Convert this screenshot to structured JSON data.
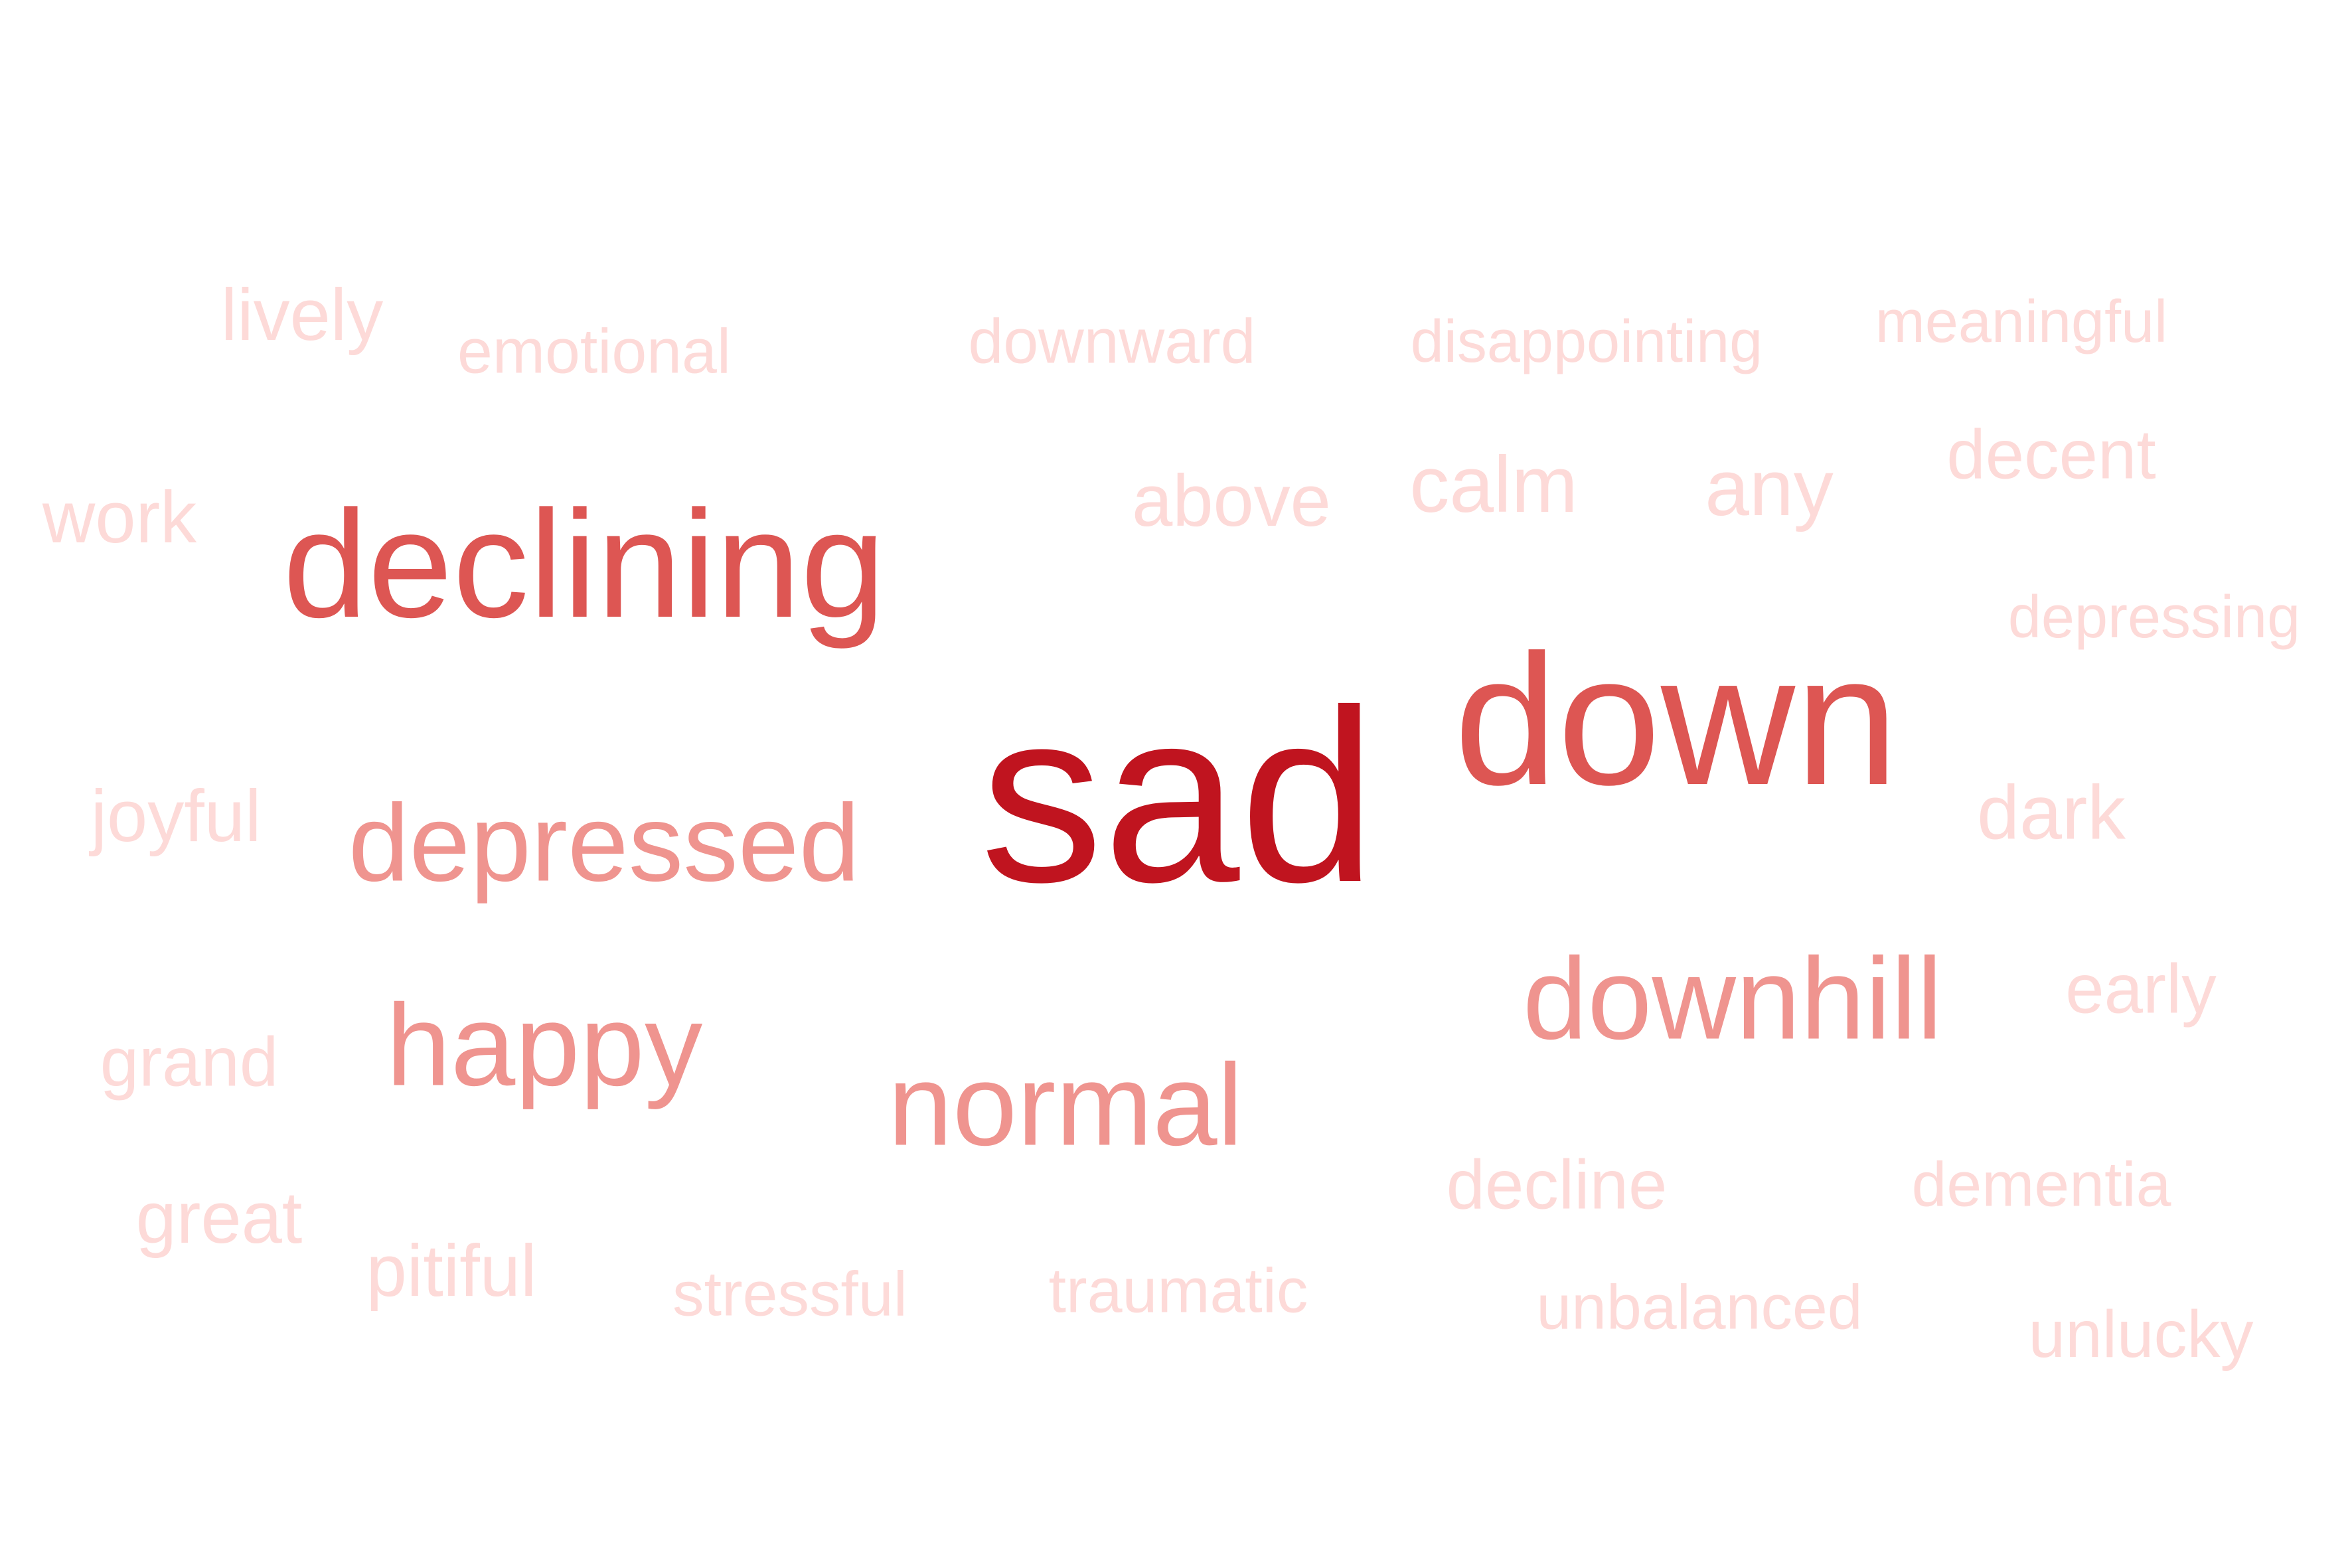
{
  "word_cloud": {
    "colors": {
      "background": "#ffffff",
      "level_5": "#c0141f",
      "level_4": "#dd5653",
      "level_3": "#ef948f",
      "level_2": "#f9c6c3",
      "level_1": "#fddad8"
    },
    "words": [
      {
        "id": "sad",
        "text": "sad",
        "level": 5
      },
      {
        "id": "down",
        "text": "down",
        "level": 4
      },
      {
        "id": "declining",
        "text": "declining",
        "level": 4
      },
      {
        "id": "downhill",
        "text": "downhill",
        "level": 3
      },
      {
        "id": "normal",
        "text": "normal",
        "level": 3
      },
      {
        "id": "depressed",
        "text": "depressed",
        "level": 3
      },
      {
        "id": "happy",
        "text": "happy",
        "level": 3
      },
      {
        "id": "lively",
        "text": "lively",
        "level": 1
      },
      {
        "id": "emotional",
        "text": "emotional",
        "level": 1
      },
      {
        "id": "downward",
        "text": "downward",
        "level": 1
      },
      {
        "id": "disappointing",
        "text": "disappointing",
        "level": 1
      },
      {
        "id": "meaningful",
        "text": "meaningful",
        "level": 1
      },
      {
        "id": "work",
        "text": "work",
        "level": 1
      },
      {
        "id": "above",
        "text": "above",
        "level": 1
      },
      {
        "id": "calm",
        "text": "calm",
        "level": 1
      },
      {
        "id": "any",
        "text": "any",
        "level": 1
      },
      {
        "id": "decent",
        "text": "decent",
        "level": 1
      },
      {
        "id": "depressing",
        "text": "depressing",
        "level": 1
      },
      {
        "id": "joyful",
        "text": "joyful",
        "level": 1
      },
      {
        "id": "dark",
        "text": "dark",
        "level": 1
      },
      {
        "id": "early",
        "text": "early",
        "level": 1
      },
      {
        "id": "grand",
        "text": "grand",
        "level": 1
      },
      {
        "id": "decline",
        "text": "decline",
        "level": 1
      },
      {
        "id": "dementia",
        "text": "dementia",
        "level": 1
      },
      {
        "id": "great",
        "text": "great",
        "level": 1
      },
      {
        "id": "pitiful",
        "text": "pitiful",
        "level": 1
      },
      {
        "id": "stressful",
        "text": "stressful",
        "level": 1
      },
      {
        "id": "traumatic",
        "text": "traumatic",
        "level": 1
      },
      {
        "id": "unbalanced",
        "text": "unbalanced",
        "level": 1
      },
      {
        "id": "unlucky",
        "text": "unlucky",
        "level": 1
      }
    ]
  }
}
